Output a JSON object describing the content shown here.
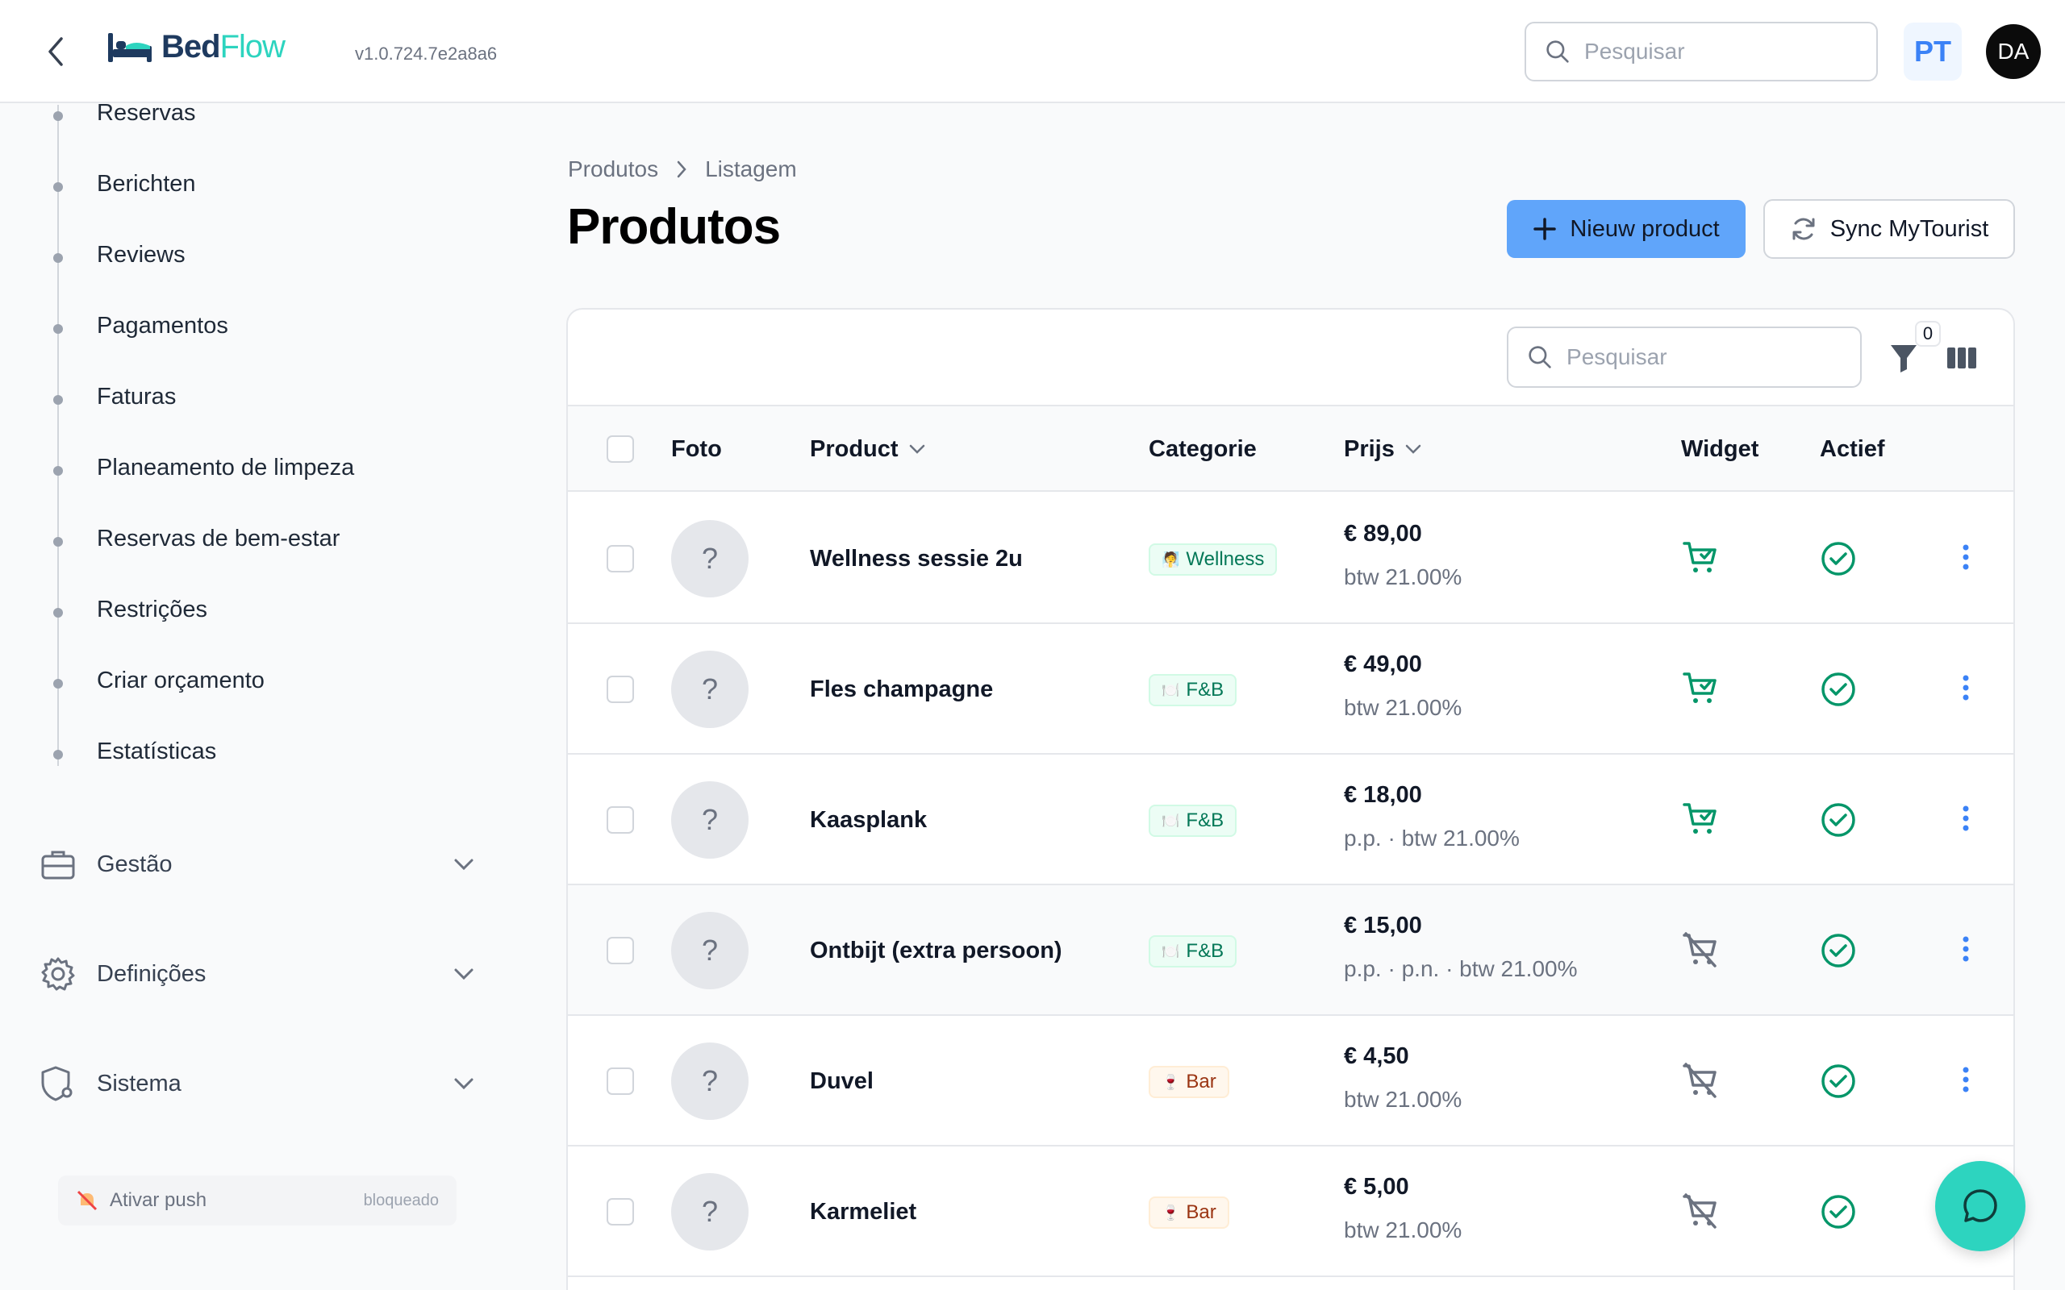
{
  "header": {
    "logo_part1": "Bed",
    "logo_part2": "Flow",
    "version": "v1.0.724.7e2a8a6",
    "search_placeholder": "Pesquisar",
    "language": "PT",
    "user_initials": "DA"
  },
  "sidebar": {
    "items": [
      {
        "label": "Reservas"
      },
      {
        "label": "Berichten"
      },
      {
        "label": "Reviews"
      },
      {
        "label": "Pagamentos"
      },
      {
        "label": "Faturas"
      },
      {
        "label": "Planeamento de limpeza"
      },
      {
        "label": "Reservas de bem-estar"
      },
      {
        "label": "Restrições"
      },
      {
        "label": "Criar orçamento"
      },
      {
        "label": "Estatísticas"
      }
    ],
    "groups": [
      {
        "label": "Gestão",
        "icon": "briefcase-icon"
      },
      {
        "label": "Definições",
        "icon": "gear-icon"
      },
      {
        "label": "Sistema",
        "icon": "shield-gear-icon"
      }
    ],
    "push": {
      "label": "Ativar push",
      "status": "bloqueado"
    }
  },
  "main": {
    "breadcrumb": [
      "Produtos",
      "Listagem"
    ],
    "title": "Produtos",
    "new_button": "Nieuw product",
    "sync_button": "Sync MyTourist",
    "table_search_placeholder": "Pesquisar",
    "filter_count": "0",
    "columns": {
      "photo": "Foto",
      "product": "Product",
      "category": "Categorie",
      "price": "Prijs",
      "widget": "Widget",
      "active": "Actief"
    },
    "rows": [
      {
        "photo": "?",
        "name": "Wellness sessie 2u",
        "category": "Wellness",
        "category_icon": "🧖",
        "category_color": "green",
        "price": "€ 89,00",
        "price_sub": "btw 21.00%",
        "widget": true,
        "active": true
      },
      {
        "photo": "?",
        "name": "Fles champagne",
        "category": "F&B",
        "category_icon": "🍽️",
        "category_color": "green",
        "price": "€ 49,00",
        "price_sub": "btw 21.00%",
        "widget": true,
        "active": true
      },
      {
        "photo": "?",
        "name": "Kaasplank",
        "category": "F&B",
        "category_icon": "🍽️",
        "category_color": "green",
        "price": "€ 18,00",
        "price_sub": "p.p. · btw 21.00%",
        "widget": true,
        "active": true
      },
      {
        "photo": "?",
        "name": "Ontbijt (extra persoon)",
        "category": "F&B",
        "category_icon": "🍽️",
        "category_color": "green",
        "price": "€ 15,00",
        "price_sub": "p.p. · p.n. · btw 21.00%",
        "widget": false,
        "active": true
      },
      {
        "photo": "?",
        "name": "Duvel",
        "category": "Bar",
        "category_icon": "🍷",
        "category_color": "orange",
        "price": "€ 4,50",
        "price_sub": "btw 21.00%",
        "widget": false,
        "active": true
      },
      {
        "photo": "?",
        "name": "Karmeliet",
        "category": "Bar",
        "category_icon": "🍷",
        "category_color": "orange",
        "price": "€ 5,00",
        "price_sub": "btw 21.00%",
        "widget": false,
        "active": true
      }
    ]
  },
  "colors": {
    "primary": "#60a5fa",
    "accent": "#2dd4bf",
    "success": "#059669",
    "menu": "#3b82f6"
  }
}
